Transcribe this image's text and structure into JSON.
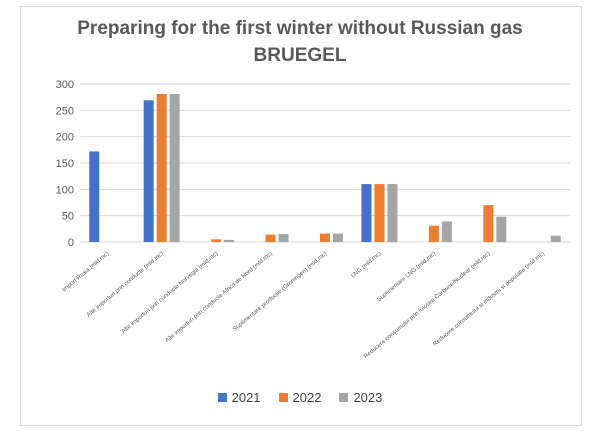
{
  "chart_data": {
    "type": "bar",
    "title": "Preparing for the first winter without Russian gas",
    "subtitle": "BRUEGEL",
    "categories": [
      "Import Rusia (mld.mc)",
      "Alte importuri prin conducte (mld.mc)",
      "Alte importuri prin conducte Norvegia (mld.mc)",
      "Alte importuri prin conducte Africa de Nord (mld.mc)",
      "Suplimentare productie (Groningen) (mld.mc)",
      "LNG (mld.mc)",
      "Suplimentare LNG (mld.mc)",
      "Reducere consumului prin folosire Carbune/Nuclear (mld.mc)",
      "Reducere consumului si industrii si populatie (mld.mc)"
    ],
    "series": [
      {
        "name": "2021",
        "color": "#4472c4",
        "values": [
          172,
          269,
          0,
          0,
          0,
          110,
          0,
          0,
          0
        ]
      },
      {
        "name": "2022",
        "color": "#ed7d31",
        "values": [
          0,
          281,
          5,
          14,
          16,
          110,
          31,
          70,
          0
        ]
      },
      {
        "name": "2023",
        "color": "#a5a5a5",
        "values": [
          0,
          281,
          4,
          15,
          16,
          110,
          39,
          48,
          12
        ]
      }
    ],
    "ylim": [
      0,
      300
    ],
    "yticks": [
      0,
      50,
      100,
      150,
      200,
      250,
      300
    ],
    "grid": true,
    "legend": "bottom"
  }
}
